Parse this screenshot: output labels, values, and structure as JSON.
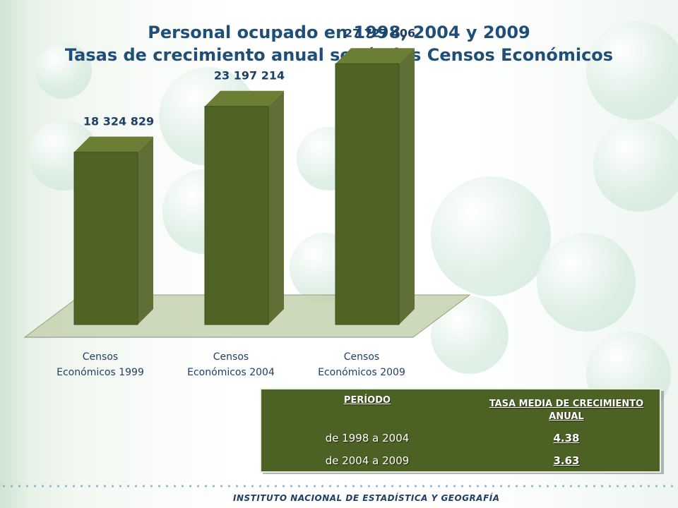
{
  "title": {
    "line1": "Personal ocupado en 1998, 2004 y 2009",
    "line2": "Tasas de crecimiento anual según los Censos Económicos"
  },
  "colors": {
    "bar_front": "#4e6324",
    "bar_side": "#5f6f36",
    "title": "#1f4e79",
    "table_bg": "#4c6224"
  },
  "chart_data": {
    "type": "bar",
    "categories": [
      "Censos Económicos 1999",
      "Censos Económicos 2004",
      "Censos Económicos 2009"
    ],
    "category_lines": [
      [
        "Censos",
        "Económicos 1999"
      ],
      [
        "Censos",
        "Económicos 2004"
      ],
      [
        "Censos",
        "Económicos 2009"
      ]
    ],
    "values": [
      18324829,
      23197214,
      27727406
    ],
    "value_labels": [
      "18 324 829",
      "23 197 214",
      "27 727 406"
    ],
    "ylim": [
      0,
      30000000
    ],
    "grid": false,
    "legend": "none",
    "style": "3d"
  },
  "table": {
    "header_period": "PERÍODO",
    "header_rate": "TASA MEDIA DE CRECIMIENTO ANUAL",
    "rows": [
      {
        "period": "de 1998 a 2004",
        "rate": "4.38"
      },
      {
        "period": "de 2004 a 2009",
        "rate": "3.63"
      }
    ]
  },
  "footer": {
    "text": "INSTITUTO NACIONAL DE ESTADÍSTICA Y GEOGRAFÍA"
  }
}
